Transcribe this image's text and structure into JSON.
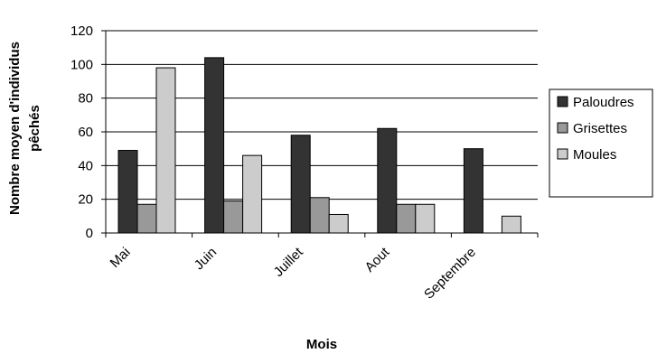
{
  "chart_data": {
    "type": "bar",
    "categories": [
      "Mai",
      "Juin",
      "Juillet",
      "Aout",
      "Septembre"
    ],
    "series": [
      {
        "name": "Paloudres",
        "values": [
          49,
          104,
          58,
          62,
          50
        ],
        "color": "#333333"
      },
      {
        "name": "Grisettes",
        "values": [
          17,
          19,
          21,
          17,
          0
        ],
        "color": "#999999"
      },
      {
        "name": "Moules",
        "values": [
          98,
          46,
          11,
          17,
          10
        ],
        "color": "#cccccc"
      }
    ],
    "xlabel": "Mois",
    "ylabel_lines": [
      "Nombre moyen d'individus",
      "pêchés"
    ],
    "ylim": [
      0,
      120
    ],
    "yticks": [
      0,
      20,
      40,
      60,
      80,
      100,
      120
    ],
    "grid": true,
    "legend_position": "right"
  }
}
